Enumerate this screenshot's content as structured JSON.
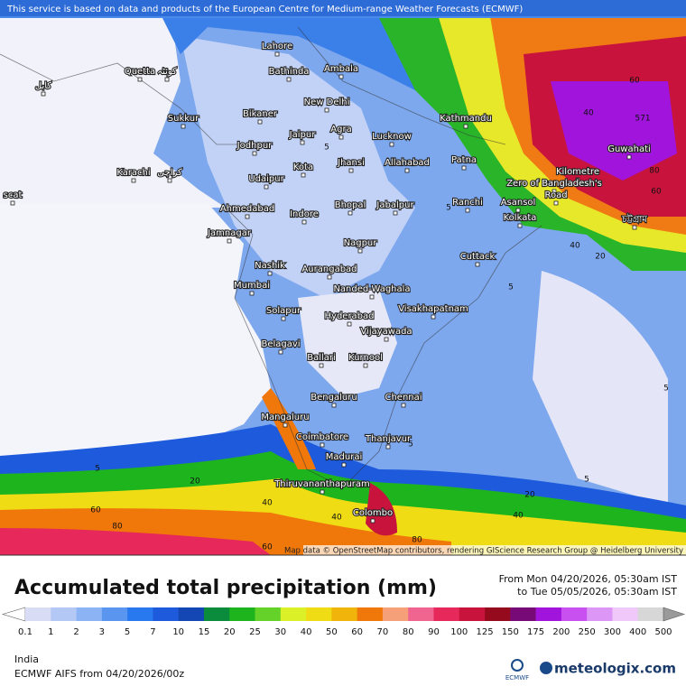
{
  "notice": "This service is based on data and products of the European Centre for Medium-range Weather Forecasts (ECMWF)",
  "attribution": "Map data © OpenStreetMap contributors, rendering GIScience Research Group @ Heidelberg University",
  "cities": [
    "Lahore",
    "Quetta",
    "کوئٹہ",
    "کابل",
    "Bathinda",
    "Ambala",
    "Sukkur",
    "Bikaner",
    "New Delhi",
    "Kathmandu",
    "Jaipur",
    "Agra",
    "Lucknow",
    "Jodhpur",
    "Jhansi",
    "Allahabad",
    "Patna",
    "Guwahati",
    "Karachi",
    "کراچی",
    "Kota",
    "Udaipur",
    "Ranchi",
    "Asansol",
    "Ahmedabad",
    "Indore",
    "Bhopal",
    "Jabalpur",
    "Kolkata",
    "Jamnagar",
    "Nagpur",
    "Cuttack",
    "Nashik",
    "Aurangabad",
    "Mumbai",
    "Nanded-Waghala",
    "Visakhapatnam",
    "Solapur",
    "Hyderabad",
    "Vijayawada",
    "Belagavi",
    "Ballari",
    "Kurnool",
    "Bengaluru",
    "Chennai",
    "Mangaluru",
    "Coimbatore",
    "Thanjavur",
    "Madurai",
    "Thiruvananthapuram",
    "Colombo",
    "Kilometre",
    "Zero of Bangladesh's",
    "Road",
    "scat",
    "চট্টগ্রাম"
  ],
  "contours": [
    5,
    20,
    40,
    60,
    80,
    60,
    40,
    20,
    40,
    80,
    5,
    5,
    5,
    5,
    5,
    40,
    60,
    80,
    60,
    40,
    20,
    5,
    571
  ],
  "legend": {
    "title": "Accumulated total precipitation (mm)",
    "from": "From Mon 04/20/2026, 05:30am IST",
    "to": "to Tue 05/05/2026, 05:30am IST",
    "ticks": [
      0.1,
      1,
      2,
      3,
      5,
      7,
      10,
      15,
      20,
      25,
      30,
      40,
      50,
      60,
      70,
      80,
      90,
      100,
      125,
      150,
      175,
      200,
      250,
      300,
      400,
      500
    ],
    "colors": [
      "#ffffff",
      "#d9dcf5",
      "#b4c8f5",
      "#8cb4f5",
      "#5a96f0",
      "#2878f0",
      "#1e5adc",
      "#1446b4",
      "#0a8c3c",
      "#1eb41e",
      "#64d228",
      "#dcf028",
      "#f0dc14",
      "#f0b40a",
      "#f0780a",
      "#f5a078",
      "#f06490",
      "#e6285a",
      "#c8143c",
      "#960a1e",
      "#780a78",
      "#a014dc",
      "#c850f0",
      "#dc96f5",
      "#f0c8fa",
      "#d7d7d7",
      "#9a9a9a"
    ]
  },
  "region": "India",
  "model": "ECMWF AIFS from  04/20/2026/00z",
  "logo": "ECMWF",
  "brand": "meteologix.com"
}
